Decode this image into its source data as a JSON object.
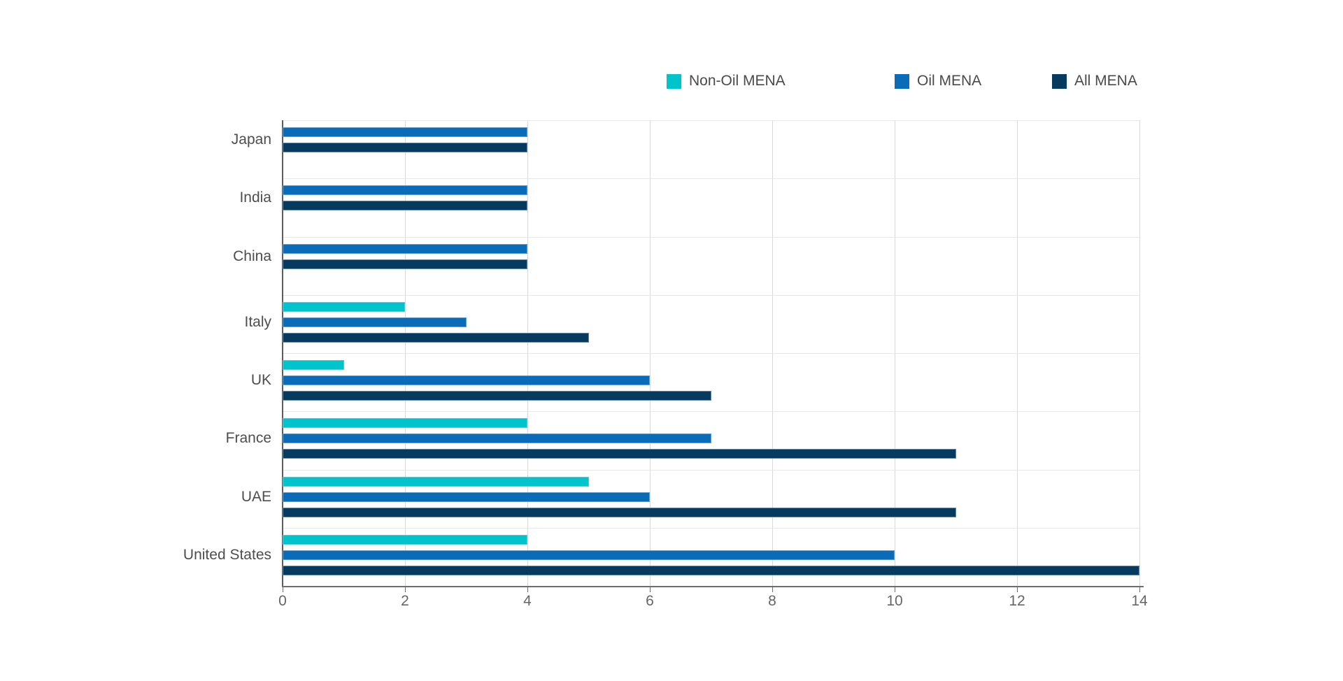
{
  "chart_data": {
    "type": "bar",
    "orientation": "horizontal",
    "title": "",
    "xlabel": "",
    "ylabel": "",
    "xlim": [
      0,
      14
    ],
    "xticks": [
      "0",
      "2",
      "4",
      "6",
      "8",
      "10",
      "12",
      "14"
    ],
    "grid": "vertical",
    "legend_position": "top-right",
    "categories": [
      "Japan",
      "India",
      "China",
      "Italy",
      "UK",
      "France",
      "UAE",
      "United States"
    ],
    "series": [
      {
        "name": "Non-Oil MENA",
        "color": "#00C4CC",
        "values": [
          0,
          0,
          0,
          2,
          1,
          4,
          5,
          4
        ]
      },
      {
        "name": "Oil MENA",
        "color": "#0A6CB8",
        "values": [
          4,
          4,
          4,
          3,
          6,
          7,
          6,
          10
        ]
      },
      {
        "name": "All MENA",
        "color": "#063A5F",
        "values": [
          4,
          4,
          4,
          5,
          7,
          11,
          11,
          14
        ]
      }
    ]
  },
  "colors": {
    "background": "#ffffff",
    "gridline": "#d9d9d9",
    "row_separator": "#e7e7e7",
    "axis_line": "#6e6e6e",
    "tick_label": "#666666",
    "category_label": "#4d4d4d",
    "legend_label": "#4a4a4a"
  }
}
